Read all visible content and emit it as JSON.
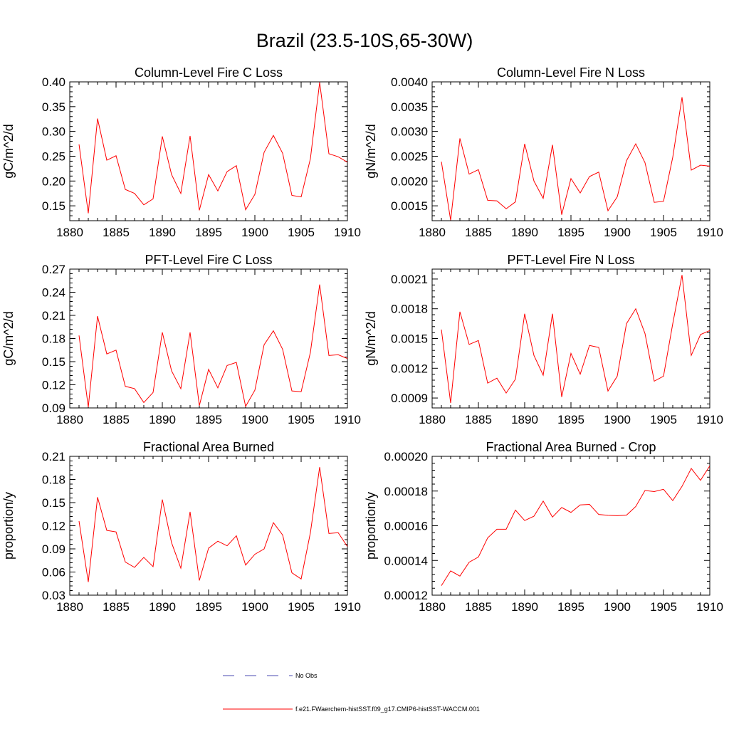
{
  "title": "Brazil (23.5-10S,65-30W)",
  "colors": {
    "series": "#ff0000",
    "obs": "#4a4ab0",
    "axis": "#000000"
  },
  "legend": {
    "obs_label": "No Obs",
    "model_label": "f.e21.FWaerchem-histSST.f09_g17.CMIP6-histSST-WACCM.001"
  },
  "chart_data": [
    {
      "type": "line",
      "title": "Column-Level Fire C Loss",
      "ylabel": "gC/m^2/d",
      "xlim": [
        1880,
        1910
      ],
      "ylim": [
        0.12,
        0.4
      ],
      "x_ticks": [
        1880,
        1885,
        1890,
        1895,
        1900,
        1905,
        1910
      ],
      "y_ticks": [
        0.15,
        0.2,
        0.25,
        0.3,
        0.35,
        0.4
      ],
      "y_tick_labels": [
        "0.15",
        "0.20",
        "0.25",
        "0.30",
        "0.35",
        "0.40"
      ],
      "x": [
        1881,
        1882,
        1883,
        1884,
        1885,
        1886,
        1887,
        1888,
        1889,
        1890,
        1891,
        1892,
        1893,
        1894,
        1895,
        1896,
        1897,
        1898,
        1899,
        1900,
        1901,
        1902,
        1903,
        1904,
        1905,
        1906,
        1907,
        1908,
        1909,
        1910
      ],
      "series": [
        {
          "values": [
            0.274,
            0.135,
            0.326,
            0.242,
            0.251,
            0.183,
            0.175,
            0.152,
            0.164,
            0.29,
            0.213,
            0.175,
            0.291,
            0.141,
            0.213,
            0.18,
            0.219,
            0.231,
            0.142,
            0.173,
            0.258,
            0.292,
            0.256,
            0.171,
            0.168,
            0.245,
            0.399,
            0.255,
            0.249,
            0.238
          ]
        }
      ]
    },
    {
      "type": "line",
      "title": "Column-Level Fire N Loss",
      "ylabel": "gN/m^2/d",
      "xlim": [
        1880,
        1910
      ],
      "ylim": [
        0.0012,
        0.004
      ],
      "x_ticks": [
        1880,
        1885,
        1890,
        1895,
        1900,
        1905,
        1910
      ],
      "y_ticks": [
        0.0015,
        0.002,
        0.0025,
        0.003,
        0.0035,
        0.004
      ],
      "y_tick_labels": [
        "0.0015",
        "0.0020",
        "0.0025",
        "0.0030",
        "0.0035",
        "0.0040"
      ],
      "x": [
        1881,
        1882,
        1883,
        1884,
        1885,
        1886,
        1887,
        1888,
        1889,
        1890,
        1891,
        1892,
        1893,
        1894,
        1895,
        1896,
        1897,
        1898,
        1899,
        1900,
        1901,
        1902,
        1903,
        1904,
        1905,
        1906,
        1907,
        1908,
        1909,
        1910
      ],
      "series": [
        {
          "values": [
            0.00239,
            0.00121,
            0.00286,
            0.00214,
            0.00223,
            0.00161,
            0.0016,
            0.00144,
            0.00158,
            0.00275,
            0.002,
            0.00165,
            0.00273,
            0.00132,
            0.00205,
            0.00176,
            0.00209,
            0.00218,
            0.0014,
            0.00168,
            0.00241,
            0.00275,
            0.00237,
            0.00157,
            0.00159,
            0.00248,
            0.00369,
            0.00222,
            0.00232,
            0.0023
          ]
        }
      ]
    },
    {
      "type": "line",
      "title": "PFT-Level Fire C Loss",
      "ylabel": "gC/m^2/d",
      "xlim": [
        1880,
        1910
      ],
      "ylim": [
        0.09,
        0.27
      ],
      "x_ticks": [
        1880,
        1885,
        1890,
        1895,
        1900,
        1905,
        1910
      ],
      "y_ticks": [
        0.09,
        0.12,
        0.15,
        0.18,
        0.21,
        0.24,
        0.27
      ],
      "y_tick_labels": [
        "0.09",
        "0.12",
        "0.15",
        "0.18",
        "0.21",
        "0.24",
        "0.27"
      ],
      "x": [
        1881,
        1882,
        1883,
        1884,
        1885,
        1886,
        1887,
        1888,
        1889,
        1890,
        1891,
        1892,
        1893,
        1894,
        1895,
        1896,
        1897,
        1898,
        1899,
        1900,
        1901,
        1902,
        1903,
        1904,
        1905,
        1906,
        1907,
        1908,
        1909,
        1910
      ],
      "series": [
        {
          "values": [
            0.184,
            0.091,
            0.209,
            0.16,
            0.165,
            0.118,
            0.115,
            0.097,
            0.11,
            0.188,
            0.138,
            0.115,
            0.188,
            0.093,
            0.14,
            0.116,
            0.145,
            0.149,
            0.092,
            0.113,
            0.172,
            0.19,
            0.166,
            0.112,
            0.111,
            0.162,
            0.25,
            0.158,
            0.159,
            0.154
          ]
        }
      ]
    },
    {
      "type": "line",
      "title": "PFT-Level Fire N Loss",
      "ylabel": "gN/m^2/d",
      "xlim": [
        1880,
        1910
      ],
      "ylim": [
        0.0008,
        0.0022
      ],
      "x_ticks": [
        1880,
        1885,
        1890,
        1895,
        1900,
        1905,
        1910
      ],
      "y_ticks": [
        0.0009,
        0.0012,
        0.0015,
        0.0018,
        0.0021
      ],
      "y_tick_labels": [
        "0.0009",
        "0.0012",
        "0.0015",
        "0.0018",
        "0.0021"
      ],
      "x": [
        1881,
        1882,
        1883,
        1884,
        1885,
        1886,
        1887,
        1888,
        1889,
        1890,
        1891,
        1892,
        1893,
        1894,
        1895,
        1896,
        1897,
        1898,
        1899,
        1900,
        1901,
        1902,
        1903,
        1904,
        1905,
        1906,
        1907,
        1908,
        1909,
        1910
      ],
      "series": [
        {
          "values": [
            0.00159,
            0.00085,
            0.00177,
            0.00144,
            0.00148,
            0.00105,
            0.0011,
            0.00095,
            0.00109,
            0.00175,
            0.00133,
            0.00113,
            0.00175,
            0.00091,
            0.00135,
            0.00114,
            0.00143,
            0.00141,
            0.00097,
            0.00112,
            0.00165,
            0.0018,
            0.00155,
            0.00107,
            0.00112,
            0.00165,
            0.00214,
            0.00133,
            0.00154,
            0.00158
          ]
        }
      ]
    },
    {
      "type": "line",
      "title": "Fractional Area Burned",
      "ylabel": "proportion/y",
      "xlim": [
        1880,
        1910
      ],
      "ylim": [
        0.03,
        0.21
      ],
      "x_ticks": [
        1880,
        1885,
        1890,
        1895,
        1900,
        1905,
        1910
      ],
      "y_ticks": [
        0.03,
        0.06,
        0.09,
        0.12,
        0.15,
        0.18,
        0.21
      ],
      "y_tick_labels": [
        "0.03",
        "0.06",
        "0.09",
        "0.12",
        "0.15",
        "0.18",
        "0.21"
      ],
      "x": [
        1881,
        1882,
        1883,
        1884,
        1885,
        1886,
        1887,
        1888,
        1889,
        1890,
        1891,
        1892,
        1893,
        1894,
        1895,
        1896,
        1897,
        1898,
        1899,
        1900,
        1901,
        1902,
        1903,
        1904,
        1905,
        1906,
        1907,
        1908,
        1909,
        1910
      ],
      "series": [
        {
          "values": [
            0.126,
            0.047,
            0.157,
            0.114,
            0.112,
            0.073,
            0.066,
            0.079,
            0.067,
            0.154,
            0.098,
            0.065,
            0.138,
            0.049,
            0.091,
            0.1,
            0.094,
            0.107,
            0.069,
            0.083,
            0.09,
            0.124,
            0.108,
            0.059,
            0.051,
            0.111,
            0.196,
            0.11,
            0.111,
            0.093
          ]
        }
      ]
    },
    {
      "type": "line",
      "title": "Fractional Area Burned - Crop",
      "ylabel": "proportion/y",
      "xlim": [
        1880,
        1910
      ],
      "ylim": [
        0.00012,
        0.0002
      ],
      "x_ticks": [
        1880,
        1885,
        1890,
        1895,
        1900,
        1905,
        1910
      ],
      "y_ticks": [
        0.00012,
        0.00014,
        0.00016,
        0.00018,
        0.0002
      ],
      "y_tick_labels": [
        "0.00012",
        "0.00014",
        "0.00016",
        "0.00018",
        "0.00020"
      ],
      "x": [
        1881,
        1882,
        1883,
        1884,
        1885,
        1886,
        1887,
        1888,
        1889,
        1890,
        1891,
        1892,
        1893,
        1894,
        1895,
        1896,
        1897,
        1898,
        1899,
        1900,
        1901,
        1902,
        1903,
        1904,
        1905,
        1906,
        1907,
        1908,
        1909,
        1910
      ],
      "series": [
        {
          "values": [
            0.0001255,
            0.000134,
            0.000131,
            0.000139,
            0.000142,
            0.000153,
            0.000158,
            0.000158,
            0.000169,
            0.000163,
            0.0001655,
            0.0001742,
            0.000165,
            0.0001705,
            0.0001677,
            0.000172,
            0.0001723,
            0.0001665,
            0.000166,
            0.0001658,
            0.0001661,
            0.0001711,
            0.0001803,
            0.0001797,
            0.000181,
            0.0001745,
            0.0001827,
            0.000193,
            0.0001862,
            0.0001945
          ]
        }
      ]
    }
  ]
}
